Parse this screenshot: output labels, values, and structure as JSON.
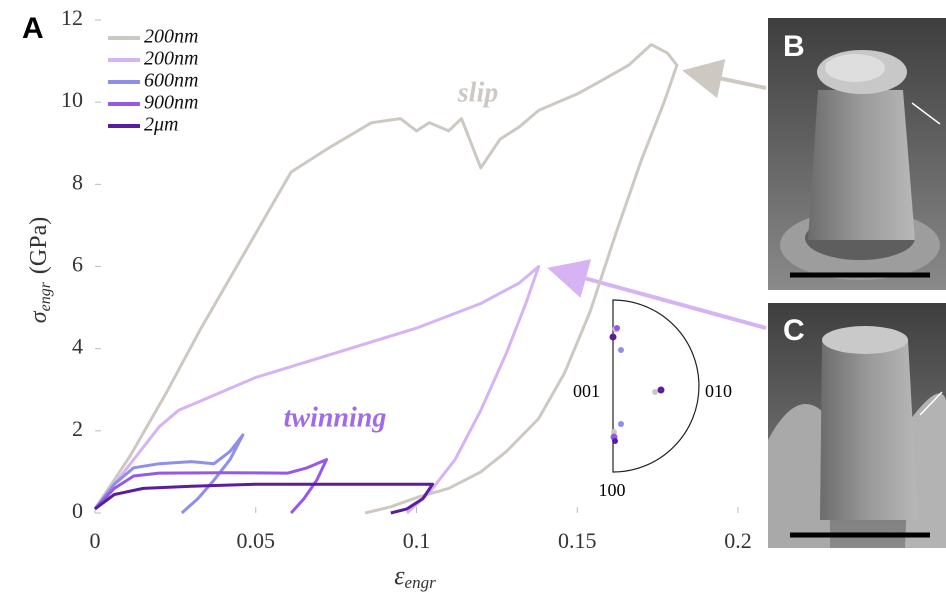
{
  "chart_data": {
    "type": "line",
    "panel_label": "A",
    "y_label": "σ",
    "y_label_sub": "engr",
    "y_label_unit": "(GPa)",
    "x_label": "ε",
    "x_label_sub": "engr",
    "xlim": [
      0,
      0.2
    ],
    "xticks": [
      0,
      0.05,
      0.1,
      0.15,
      0.2
    ],
    "ylim": [
      0,
      12
    ],
    "yticks": [
      0,
      2,
      4,
      6,
      8,
      10,
      12
    ],
    "annotations": {
      "slip": "slip",
      "twinning": "twinning"
    },
    "series": [
      {
        "name": "200nm",
        "color": "#cdc9c2",
        "x": [
          0,
          0.011,
          0.022,
          0.033,
          0.047,
          0.061,
          0.073,
          0.086,
          0.095,
          0.1,
          0.104,
          0.11,
          0.114,
          0.12,
          0.126,
          0.132,
          0.138,
          0.15,
          0.157,
          0.166,
          0.173,
          0.178,
          0.181,
          0.177,
          0.17,
          0.162,
          0.154,
          0.146,
          0.138,
          0.128,
          0.12,
          0.11,
          0.101,
          0.092,
          0.084
        ],
        "values": [
          0.1,
          1.4,
          2.9,
          4.5,
          6.4,
          8.3,
          8.9,
          9.5,
          9.6,
          9.3,
          9.5,
          9.3,
          9.6,
          8.4,
          9.1,
          9.4,
          9.8,
          10.2,
          10.5,
          10.9,
          11.4,
          11.2,
          10.9,
          10,
          8.6,
          6.8,
          4.9,
          3.4,
          2.3,
          1.5,
          1,
          0.6,
          0.4,
          0.15,
          0
        ]
      },
      {
        "name": "200nm",
        "color": "#d6b3f2",
        "x": [
          0,
          0.01,
          0.02,
          0.026,
          0.032,
          0.05,
          0.075,
          0.1,
          0.12,
          0.132,
          0.138,
          0.134,
          0.128,
          0.12,
          0.112,
          0.104,
          0.097
        ],
        "values": [
          0.1,
          1.1,
          2.1,
          2.5,
          2.7,
          3.3,
          3.9,
          4.5,
          5.1,
          5.6,
          6,
          5.1,
          3.9,
          2.5,
          1.3,
          0.5,
          0
        ]
      },
      {
        "name": "600nm",
        "color": "#8f8fea",
        "x": [
          0,
          0.006,
          0.012,
          0.02,
          0.03,
          0.037,
          0.042,
          0.046,
          0.042,
          0.037,
          0.032,
          0.027
        ],
        "values": [
          0.1,
          0.7,
          1.1,
          1.2,
          1.25,
          1.2,
          1.5,
          1.9,
          1.3,
          0.8,
          0.35,
          0
        ]
      },
      {
        "name": "900nm",
        "color": "#9659e6",
        "x": [
          0,
          0.006,
          0.012,
          0.02,
          0.04,
          0.06,
          0.066,
          0.072,
          0.069,
          0.065,
          0.061
        ],
        "values": [
          0.1,
          0.6,
          0.9,
          0.97,
          0.98,
          0.97,
          1.1,
          1.3,
          0.8,
          0.35,
          0
        ]
      },
      {
        "name": "2μm",
        "color": "#5a1d9e",
        "x": [
          0,
          0.006,
          0.015,
          0.03,
          0.05,
          0.075,
          0.1,
          0.105,
          0.102,
          0.097,
          0.092
        ],
        "values": [
          0.1,
          0.45,
          0.6,
          0.65,
          0.7,
          0.7,
          0.7,
          0.7,
          0.35,
          0.1,
          0
        ]
      }
    ],
    "inset": {
      "labels": [
        "001",
        "010",
        "100"
      ]
    }
  },
  "images": [
    {
      "label": "B"
    },
    {
      "label": "C"
    }
  ]
}
